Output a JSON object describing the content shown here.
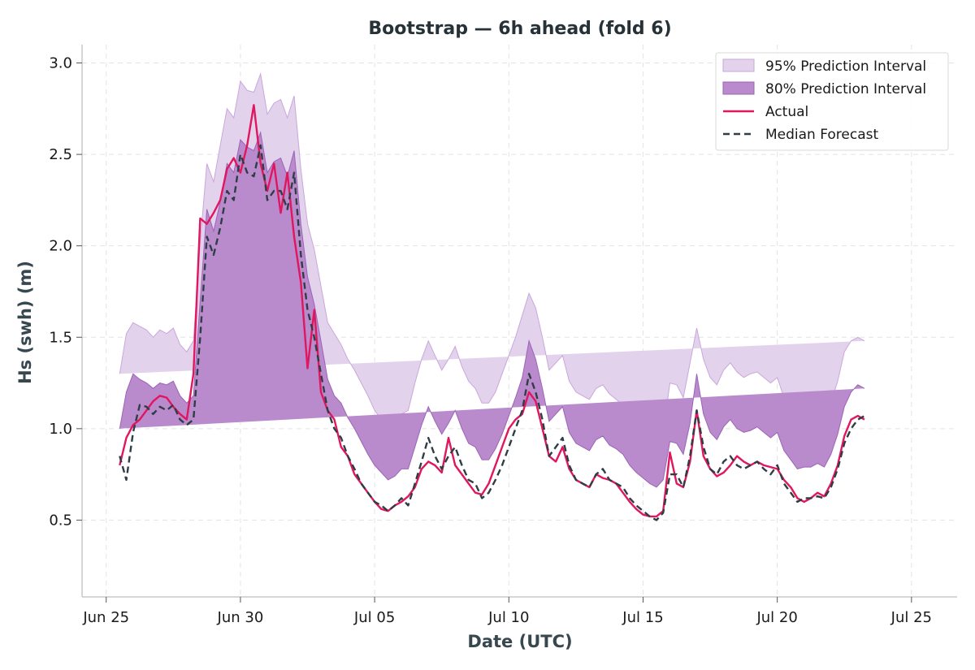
{
  "chart_data": {
    "type": "line",
    "title": "Bootstrap — 6h ahead (fold 6)",
    "xlabel": "Date (UTC)",
    "ylabel": "Hs (swh) (m)",
    "x_ticks": [
      {
        "day": 0,
        "label": "Jun 25"
      },
      {
        "day": 5,
        "label": "Jun 30"
      },
      {
        "day": 10,
        "label": "Jul 05"
      },
      {
        "day": 15,
        "label": "Jul 10"
      },
      {
        "day": 20,
        "label": "Jul 15"
      },
      {
        "day": 25,
        "label": "Jul 20"
      },
      {
        "day": 30,
        "label": "Jul 25"
      }
    ],
    "xlim_days": [
      -0.9,
      31.7
    ],
    "ylim": [
      0.08,
      3.1
    ],
    "y_ticks": [
      0.5,
      1.0,
      1.5,
      2.0,
      2.5,
      3.0
    ],
    "y_tick_labels": [
      "0.5",
      "1.0",
      "1.5",
      "2.0",
      "2.5",
      "3.0"
    ],
    "grid": true,
    "legend_position": "top-right",
    "legend": [
      "95% Prediction Interval",
      "80% Prediction Interval",
      "Actual",
      "Median Forecast"
    ],
    "colors": {
      "pi95_fill": "#e3d2ec",
      "pi95_edge": "#c9a6dc",
      "pi80_fill": "#b98bcc",
      "pi80_edge": "#9c62b8",
      "actual": "#e0165f",
      "median": "#2f3e46"
    },
    "x_days": [
      0.5,
      0.75,
      1.0,
      1.25,
      1.5,
      1.75,
      2.0,
      2.25,
      2.5,
      2.75,
      3.0,
      3.25,
      3.5,
      3.75,
      4.0,
      4.25,
      4.5,
      4.75,
      5.0,
      5.25,
      5.5,
      5.75,
      6.0,
      6.25,
      6.5,
      6.75,
      7.0,
      7.25,
      7.5,
      7.75,
      8.0,
      8.25,
      8.5,
      8.75,
      9.0,
      9.25,
      9.5,
      9.75,
      10.0,
      10.25,
      10.5,
      10.75,
      11.0,
      11.25,
      11.5,
      11.75,
      12.0,
      12.25,
      12.5,
      12.75,
      13.0,
      13.25,
      13.5,
      13.75,
      14.0,
      14.25,
      14.5,
      14.75,
      15.0,
      15.25,
      15.5,
      15.75,
      16.0,
      16.25,
      16.5,
      16.75,
      17.0,
      17.25,
      17.5,
      17.75,
      18.0,
      18.25,
      18.5,
      18.75,
      19.0,
      19.25,
      19.5,
      19.75,
      20.0,
      20.25,
      20.5,
      20.75,
      21.0,
      21.25,
      21.5,
      21.75,
      22.0,
      22.25,
      22.5,
      22.75,
      23.0,
      23.25,
      23.5,
      23.75,
      24.0,
      24.25,
      24.5,
      24.75,
      25.0,
      25.25,
      25.5,
      25.75,
      26.0,
      26.25,
      26.5,
      26.75,
      27.0,
      27.25,
      27.5,
      27.75,
      28.0,
      28.25,
      28.5,
      28.75,
      29.0,
      29.25,
      29.5,
      29.75,
      30.0,
      30.25
    ],
    "series": [
      {
        "name": "Actual",
        "values": [
          0.8,
          0.95,
          1.02,
          1.05,
          1.1,
          1.15,
          1.18,
          1.17,
          1.12,
          1.08,
          1.05,
          1.3,
          2.15,
          2.12,
          2.18,
          2.25,
          2.42,
          2.48,
          2.4,
          2.55,
          2.77,
          2.45,
          2.3,
          2.45,
          2.18,
          2.4,
          2.05,
          1.8,
          1.33,
          1.65,
          1.2,
          1.1,
          1.05,
          0.9,
          0.85,
          0.75,
          0.7,
          0.65,
          0.6,
          0.56,
          0.55,
          0.58,
          0.6,
          0.63,
          0.68,
          0.78,
          0.82,
          0.8,
          0.76,
          0.95,
          0.8,
          0.75,
          0.7,
          0.65,
          0.64,
          0.7,
          0.8,
          0.9,
          1.0,
          1.05,
          1.08,
          1.2,
          1.15,
          1.0,
          0.85,
          0.82,
          0.9,
          0.78,
          0.72,
          0.7,
          0.68,
          0.75,
          0.73,
          0.72,
          0.7,
          0.65,
          0.6,
          0.56,
          0.53,
          0.52,
          0.52,
          0.55,
          0.87,
          0.7,
          0.68,
          0.82,
          1.1,
          0.85,
          0.78,
          0.74,
          0.76,
          0.8,
          0.85,
          0.82,
          0.8,
          0.82,
          0.8,
          0.79,
          0.78,
          0.72,
          0.68,
          0.62,
          0.6,
          0.62,
          0.65,
          0.63,
          0.7,
          0.8,
          0.96,
          1.05,
          1.07,
          1.05
        ]
      },
      {
        "name": "Median Forecast",
        "values": [
          0.85,
          0.72,
          0.98,
          1.13,
          1.12,
          1.08,
          1.12,
          1.1,
          1.13,
          1.05,
          1.02,
          1.05,
          1.5,
          2.05,
          1.95,
          2.1,
          2.3,
          2.25,
          2.5,
          2.4,
          2.38,
          2.55,
          2.25,
          2.3,
          2.3,
          2.2,
          2.4,
          1.95,
          1.65,
          1.5,
          1.3,
          1.1,
          1.0,
          0.95,
          0.85,
          0.78,
          0.7,
          0.65,
          0.6,
          0.58,
          0.55,
          0.58,
          0.62,
          0.58,
          0.7,
          0.82,
          0.95,
          0.85,
          0.78,
          0.85,
          0.9,
          0.8,
          0.72,
          0.7,
          0.62,
          0.65,
          0.72,
          0.8,
          0.9,
          1.0,
          1.1,
          1.3,
          1.2,
          1.05,
          0.85,
          0.9,
          0.95,
          0.8,
          0.72,
          0.7,
          0.68,
          0.75,
          0.78,
          0.72,
          0.7,
          0.68,
          0.62,
          0.58,
          0.55,
          0.52,
          0.5,
          0.54,
          0.75,
          0.75,
          0.68,
          0.85,
          1.1,
          0.9,
          0.78,
          0.75,
          0.82,
          0.85,
          0.8,
          0.78,
          0.8,
          0.82,
          0.78,
          0.75,
          0.8,
          0.7,
          0.65,
          0.6,
          0.62,
          0.62,
          0.63,
          0.62,
          0.68,
          0.78,
          0.92,
          1.0,
          1.05,
          1.07
        ]
      },
      {
        "name": "80% Prediction Interval",
        "lower": [
          0.65,
          0.78,
          0.88,
          0.95,
          0.98,
          0.96,
          0.98,
          0.97,
          0.99,
          0.92,
          0.88,
          0.92,
          1.28,
          1.85,
          1.8,
          1.95,
          2.13,
          2.1,
          2.25,
          2.23,
          2.23,
          2.3,
          2.05,
          2.1,
          2.05,
          2.0,
          2.1,
          1.75,
          1.45,
          1.3,
          1.1,
          0.93,
          0.8,
          0.72,
          0.63,
          0.56,
          0.5,
          0.47,
          0.45,
          0.43,
          0.42,
          0.44,
          0.46,
          0.44,
          0.55,
          0.66,
          0.75,
          0.66,
          0.6,
          0.65,
          0.7,
          0.64,
          0.57,
          0.55,
          0.5,
          0.51,
          0.57,
          0.64,
          0.72,
          0.82,
          0.9,
          1.07,
          0.98,
          0.85,
          0.68,
          0.72,
          0.77,
          0.63,
          0.56,
          0.54,
          0.52,
          0.58,
          0.6,
          0.55,
          0.52,
          0.5,
          0.44,
          0.41,
          0.39,
          0.38,
          0.37,
          0.4,
          0.57,
          0.56,
          0.5,
          0.65,
          0.9,
          0.68,
          0.58,
          0.56,
          0.63,
          0.66,
          0.62,
          0.59,
          0.61,
          0.62,
          0.59,
          0.56,
          0.6,
          0.52,
          0.48,
          0.45,
          0.46,
          0.46,
          0.47,
          0.46,
          0.52,
          0.58,
          0.74,
          0.82,
          0.88,
          0.92
        ],
        "upper": [
          1.0,
          1.2,
          1.3,
          1.27,
          1.25,
          1.22,
          1.25,
          1.24,
          1.26,
          1.18,
          1.14,
          1.18,
          1.7,
          2.2,
          2.08,
          2.24,
          2.45,
          2.4,
          2.58,
          2.54,
          2.52,
          2.62,
          2.4,
          2.46,
          2.48,
          2.38,
          2.52,
          2.12,
          1.83,
          1.68,
          1.48,
          1.27,
          1.18,
          1.14,
          1.06,
          1.0,
          0.93,
          0.86,
          0.8,
          0.76,
          0.72,
          0.74,
          0.78,
          0.78,
          0.9,
          1.02,
          1.12,
          1.04,
          0.97,
          1.03,
          1.1,
          1.0,
          0.92,
          0.9,
          0.83,
          0.83,
          0.89,
          0.97,
          1.07,
          1.17,
          1.28,
          1.48,
          1.38,
          1.22,
          1.04,
          1.08,
          1.12,
          0.98,
          0.92,
          0.9,
          0.88,
          0.94,
          0.96,
          0.91,
          0.89,
          0.86,
          0.8,
          0.76,
          0.73,
          0.7,
          0.68,
          0.72,
          0.93,
          0.92,
          0.86,
          1.03,
          1.3,
          1.08,
          0.98,
          0.94,
          1.01,
          1.05,
          1.0,
          0.98,
          0.99,
          1.01,
          0.98,
          0.95,
          0.98,
          0.88,
          0.83,
          0.78,
          0.79,
          0.79,
          0.81,
          0.79,
          0.86,
          0.97,
          1.12,
          1.2,
          1.24,
          1.22
        ]
      },
      {
        "name": "95% Prediction Interval",
        "lower": [
          0.5,
          0.62,
          0.8,
          0.86,
          0.88,
          0.85,
          0.86,
          0.84,
          0.86,
          0.8,
          0.76,
          0.8,
          1.12,
          1.68,
          1.62,
          1.77,
          1.93,
          1.93,
          2.05,
          2.08,
          2.08,
          2.14,
          1.88,
          1.9,
          1.87,
          1.86,
          1.9,
          1.6,
          1.32,
          1.16,
          0.95,
          0.76,
          0.62,
          0.53,
          0.44,
          0.38,
          0.33,
          0.31,
          0.3,
          0.29,
          0.28,
          0.3,
          0.32,
          0.3,
          0.4,
          0.48,
          0.56,
          0.49,
          0.44,
          0.48,
          0.51,
          0.46,
          0.41,
          0.4,
          0.36,
          0.37,
          0.42,
          0.48,
          0.56,
          0.64,
          0.72,
          0.88,
          0.8,
          0.68,
          0.53,
          0.56,
          0.6,
          0.48,
          0.42,
          0.41,
          0.4,
          0.45,
          0.47,
          0.42,
          0.39,
          0.37,
          0.32,
          0.28,
          0.26,
          0.25,
          0.24,
          0.27,
          0.43,
          0.42,
          0.37,
          0.5,
          0.72,
          0.52,
          0.43,
          0.42,
          0.48,
          0.52,
          0.48,
          0.45,
          0.47,
          0.48,
          0.45,
          0.42,
          0.46,
          0.39,
          0.35,
          0.33,
          0.33,
          0.33,
          0.34,
          0.33,
          0.39,
          0.44,
          0.58,
          0.66,
          0.72,
          0.78
        ],
        "upper": [
          1.3,
          1.52,
          1.58,
          1.56,
          1.54,
          1.5,
          1.54,
          1.52,
          1.55,
          1.46,
          1.42,
          1.48,
          2.02,
          2.45,
          2.35,
          2.55,
          2.75,
          2.7,
          2.9,
          2.85,
          2.84,
          2.94,
          2.72,
          2.78,
          2.8,
          2.7,
          2.82,
          2.42,
          2.12,
          1.98,
          1.78,
          1.58,
          1.52,
          1.46,
          1.38,
          1.32,
          1.25,
          1.18,
          1.1,
          1.05,
          1.02,
          1.04,
          1.08,
          1.1,
          1.25,
          1.38,
          1.48,
          1.4,
          1.32,
          1.38,
          1.45,
          1.34,
          1.26,
          1.22,
          1.14,
          1.14,
          1.2,
          1.3,
          1.4,
          1.5,
          1.62,
          1.74,
          1.66,
          1.5,
          1.32,
          1.36,
          1.4,
          1.26,
          1.2,
          1.18,
          1.16,
          1.22,
          1.24,
          1.19,
          1.16,
          1.13,
          1.06,
          1.02,
          0.99,
          0.96,
          0.94,
          0.98,
          1.25,
          1.24,
          1.17,
          1.36,
          1.55,
          1.38,
          1.28,
          1.24,
          1.32,
          1.36,
          1.31,
          1.28,
          1.3,
          1.31,
          1.28,
          1.25,
          1.28,
          1.17,
          1.12,
          1.06,
          1.07,
          1.07,
          1.09,
          1.07,
          1.14,
          1.26,
          1.42,
          1.48,
          1.5,
          1.48
        ]
      }
    ]
  }
}
